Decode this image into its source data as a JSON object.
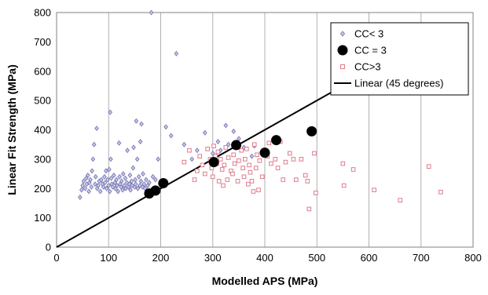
{
  "chart_data": {
    "type": "scatter",
    "xlabel": "Modelled APS (MPa)",
    "ylabel": "Linear Fit Strength (MPa)",
    "xlim": [
      0,
      800
    ],
    "ylim": [
      0,
      800
    ],
    "x_ticks": [
      0,
      100,
      200,
      300,
      400,
      500,
      600,
      700,
      800
    ],
    "y_ticks": [
      0,
      100,
      200,
      300,
      400,
      500,
      600,
      700,
      800
    ],
    "grid": "vertical",
    "legend_position": "top-right",
    "series": [
      {
        "name": "CC< 3",
        "marker": "diamond",
        "color": "#7070b0",
        "points": [
          [
            45,
            170
          ],
          [
            48,
            195
          ],
          [
            50,
            210
          ],
          [
            52,
            225
          ],
          [
            55,
            200
          ],
          [
            57,
            235
          ],
          [
            58,
            215
          ],
          [
            60,
            245
          ],
          [
            62,
            190
          ],
          [
            63,
            220
          ],
          [
            65,
            230
          ],
          [
            67,
            205
          ],
          [
            68,
            260
          ],
          [
            70,
            300
          ],
          [
            72,
            350
          ],
          [
            74,
            215
          ],
          [
            75,
            240
          ],
          [
            77,
            405
          ],
          [
            78,
            200
          ],
          [
            80,
            210
          ],
          [
            82,
            225
          ],
          [
            84,
            190
          ],
          [
            86,
            230
          ],
          [
            88,
            215
          ],
          [
            90,
            205
          ],
          [
            92,
            240
          ],
          [
            93,
            220
          ],
          [
            95,
            260
          ],
          [
            96,
            200
          ],
          [
            98,
            230
          ],
          [
            100,
            210
          ],
          [
            101,
            265
          ],
          [
            102,
            190
          ],
          [
            103,
            460
          ],
          [
            104,
            300
          ],
          [
            105,
            235
          ],
          [
            106,
            215
          ],
          [
            108,
            205
          ],
          [
            110,
            245
          ],
          [
            112,
            220
          ],
          [
            113,
            200
          ],
          [
            115,
            230
          ],
          [
            116,
            210
          ],
          [
            118,
            190
          ],
          [
            120,
            355
          ],
          [
            121,
            240
          ],
          [
            122,
            215
          ],
          [
            124,
            205
          ],
          [
            125,
            225
          ],
          [
            127,
            195
          ],
          [
            128,
            250
          ],
          [
            130,
            210
          ],
          [
            132,
            235
          ],
          [
            133,
            200
          ],
          [
            135,
            220
          ],
          [
            136,
            330
          ],
          [
            138,
            205
          ],
          [
            140,
            215
          ],
          [
            141,
            245
          ],
          [
            142,
            195
          ],
          [
            144,
            225
          ],
          [
            145,
            210
          ],
          [
            147,
            270
          ],
          [
            148,
            340
          ],
          [
            150,
            205
          ],
          [
            151,
            230
          ],
          [
            152,
            215
          ],
          [
            153,
            430
          ],
          [
            155,
            300
          ],
          [
            156,
            200
          ],
          [
            158,
            240
          ],
          [
            160,
            210
          ],
          [
            161,
            360
          ],
          [
            162,
            225
          ],
          [
            163,
            420
          ],
          [
            165,
            205
          ],
          [
            166,
            250
          ],
          [
            168,
            215
          ],
          [
            170,
            200
          ],
          [
            172,
            230
          ],
          [
            175,
            210
          ],
          [
            178,
            220
          ],
          [
            182,
            800
          ],
          [
            185,
            240
          ],
          [
            190,
            230
          ],
          [
            195,
            300
          ],
          [
            210,
            410
          ],
          [
            220,
            380
          ],
          [
            230,
            660
          ],
          [
            245,
            350
          ],
          [
            260,
            300
          ],
          [
            270,
            330
          ],
          [
            285,
            390
          ],
          [
            300,
            320
          ],
          [
            310,
            360
          ],
          [
            315,
            330
          ],
          [
            325,
            415
          ],
          [
            330,
            350
          ],
          [
            340,
            395
          ],
          [
            350,
            370
          ],
          [
            360,
            340
          ],
          [
            375,
            310
          ],
          [
            380,
            345
          ]
        ]
      },
      {
        "name": "CC = 3",
        "marker": "circle",
        "color": "#000000",
        "points": [
          [
            178,
            183
          ],
          [
            190,
            193
          ],
          [
            205,
            218
          ],
          [
            302,
            290
          ],
          [
            345,
            348
          ],
          [
            400,
            322
          ],
          [
            422,
            365
          ],
          [
            490,
            395
          ]
        ]
      },
      {
        "name": "CC>3",
        "marker": "square",
        "color": "#e07a8a",
        "points": [
          [
            245,
            290
          ],
          [
            255,
            330
          ],
          [
            265,
            230
          ],
          [
            270,
            260
          ],
          [
            275,
            310
          ],
          [
            280,
            280
          ],
          [
            285,
            250
          ],
          [
            290,
            335
          ],
          [
            295,
            300
          ],
          [
            298,
            270
          ],
          [
            300,
            240
          ],
          [
            302,
            345
          ],
          [
            305,
            310
          ],
          [
            308,
            285
          ],
          [
            310,
            325
          ],
          [
            312,
            225
          ],
          [
            315,
            300
          ],
          [
            318,
            265
          ],
          [
            320,
            210
          ],
          [
            322,
            280
          ],
          [
            325,
            340
          ],
          [
            328,
            230
          ],
          [
            330,
            305
          ],
          [
            335,
            260
          ],
          [
            338,
            250
          ],
          [
            340,
            315
          ],
          [
            342,
            285
          ],
          [
            345,
            355
          ],
          [
            348,
            225
          ],
          [
            350,
            295
          ],
          [
            355,
            330
          ],
          [
            358,
            270
          ],
          [
            360,
            240
          ],
          [
            362,
            300
          ],
          [
            365,
            335
          ],
          [
            368,
            215
          ],
          [
            370,
            280
          ],
          [
            372,
            255
          ],
          [
            375,
            225
          ],
          [
            378,
            190
          ],
          [
            380,
            350
          ],
          [
            383,
            270
          ],
          [
            385,
            315
          ],
          [
            388,
            195
          ],
          [
            390,
            295
          ],
          [
            395,
            240
          ],
          [
            398,
            330
          ],
          [
            402,
            320
          ],
          [
            405,
            310
          ],
          [
            408,
            355
          ],
          [
            412,
            285
          ],
          [
            420,
            300
          ],
          [
            425,
            270
          ],
          [
            430,
            360
          ],
          [
            435,
            230
          ],
          [
            440,
            290
          ],
          [
            448,
            320
          ],
          [
            455,
            300
          ],
          [
            460,
            230
          ],
          [
            470,
            300
          ],
          [
            478,
            245
          ],
          [
            482,
            225
          ],
          [
            485,
            130
          ],
          [
            495,
            320
          ],
          [
            498,
            185
          ],
          [
            550,
            285
          ],
          [
            552,
            210
          ],
          [
            570,
            265
          ],
          [
            610,
            195
          ],
          [
            660,
            160
          ],
          [
            715,
            275
          ],
          [
            738,
            188
          ]
        ]
      },
      {
        "name": "Linear (45 degrees)",
        "marker": "line",
        "color": "#000000",
        "points": [
          [
            0,
            0
          ],
          [
            550,
            550
          ]
        ]
      }
    ]
  }
}
